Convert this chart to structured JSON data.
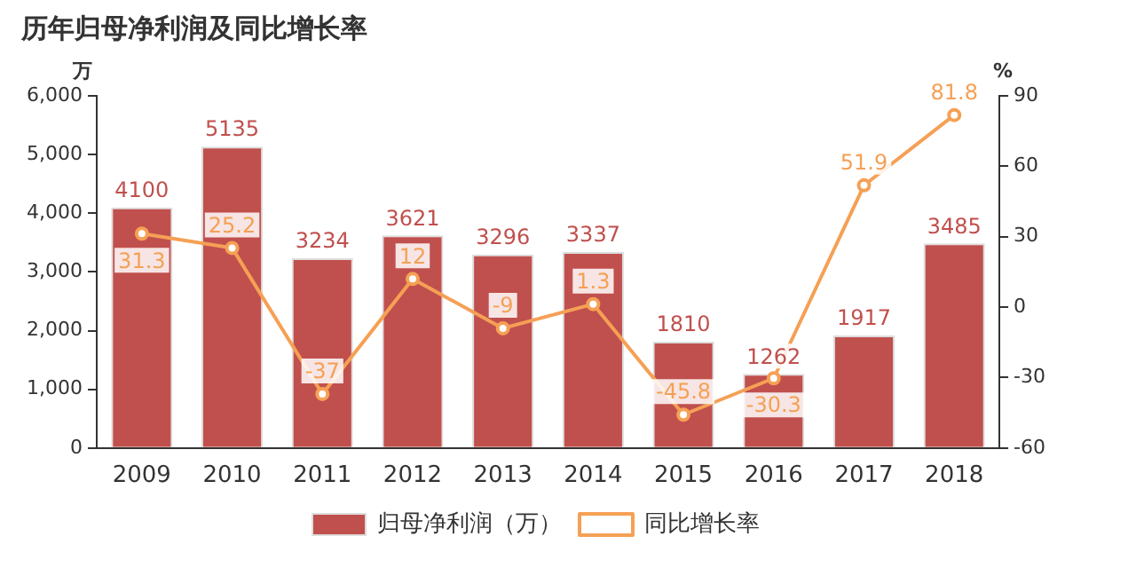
{
  "chart_data": {
    "type": "bar",
    "title": "历年归母净利润及同比增长率",
    "ylabel": "万",
    "y2label": "%",
    "categories": [
      "2009",
      "2010",
      "2011",
      "2012",
      "2013",
      "2014",
      "2015",
      "2016",
      "2017",
      "2018"
    ],
    "series": [
      {
        "name": "归母净利润（万）",
        "color": "#c0504d",
        "values": [
          4100,
          5135,
          3234,
          3621,
          3296,
          3337,
          1810,
          1262,
          1917,
          3485
        ]
      },
      {
        "name": "同比增长率",
        "type": "line",
        "axis": "y2",
        "color": "#f5a055",
        "marker": "circle",
        "values": [
          31.3,
          25.2,
          -37,
          12,
          -9,
          1.3,
          -45.8,
          -30.3,
          51.9,
          81.8
        ]
      }
    ],
    "ylim": [
      0,
      6000
    ],
    "yticks": [
      0,
      {
        "value": 1000,
        "label": "1,000"
      },
      {
        "value": 2000,
        "label": "2,000"
      },
      {
        "value": 3000,
        "label": "3,000"
      },
      {
        "value": 4000,
        "label": "4,000"
      },
      {
        "value": 5000,
        "label": "5,000"
      },
      {
        "value": 6000,
        "label": "6,000"
      }
    ],
    "y2lim": [
      -60,
      90
    ],
    "y2ticks": [
      -60,
      -30,
      0,
      30,
      60,
      90
    ],
    "grid": false,
    "legend": "bottom",
    "data_labels": true
  }
}
